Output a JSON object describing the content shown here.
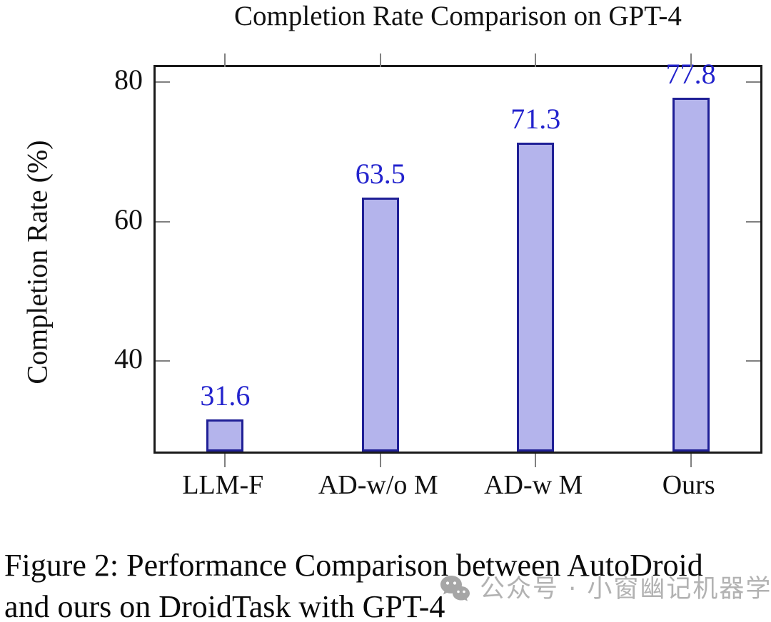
{
  "chart_data": {
    "type": "bar",
    "title": "Completion Rate Comparison on GPT-4",
    "categories": [
      "LLM-F",
      "AD-w/o M",
      "AD-w M",
      "Ours"
    ],
    "values": [
      31.6,
      63.5,
      71.3,
      77.8
    ],
    "value_labels": [
      "31.6",
      "63.5",
      "71.3",
      "77.8"
    ],
    "xlabel": "",
    "ylabel": "Completion Rate (%)",
    "ylim": [
      27.0,
      82.2
    ],
    "yticks": [
      40,
      60,
      80
    ],
    "grid": false,
    "legend": null,
    "colors": {
      "bar_fill": "#b4b4ec",
      "bar_border": "#1f1f96",
      "value_label": "#2323cd",
      "axis": "#1a1a1a",
      "tick": "#808080"
    }
  },
  "caption": {
    "line1": "Figure 2: Performance Comparison between AutoDroid",
    "line2": "and ours on DroidTask with GPT-4"
  },
  "watermark": {
    "icon": "wechat-icon",
    "text": "公众号 · 小窗幽记机器学习",
    "color": "#b2b2b2"
  }
}
